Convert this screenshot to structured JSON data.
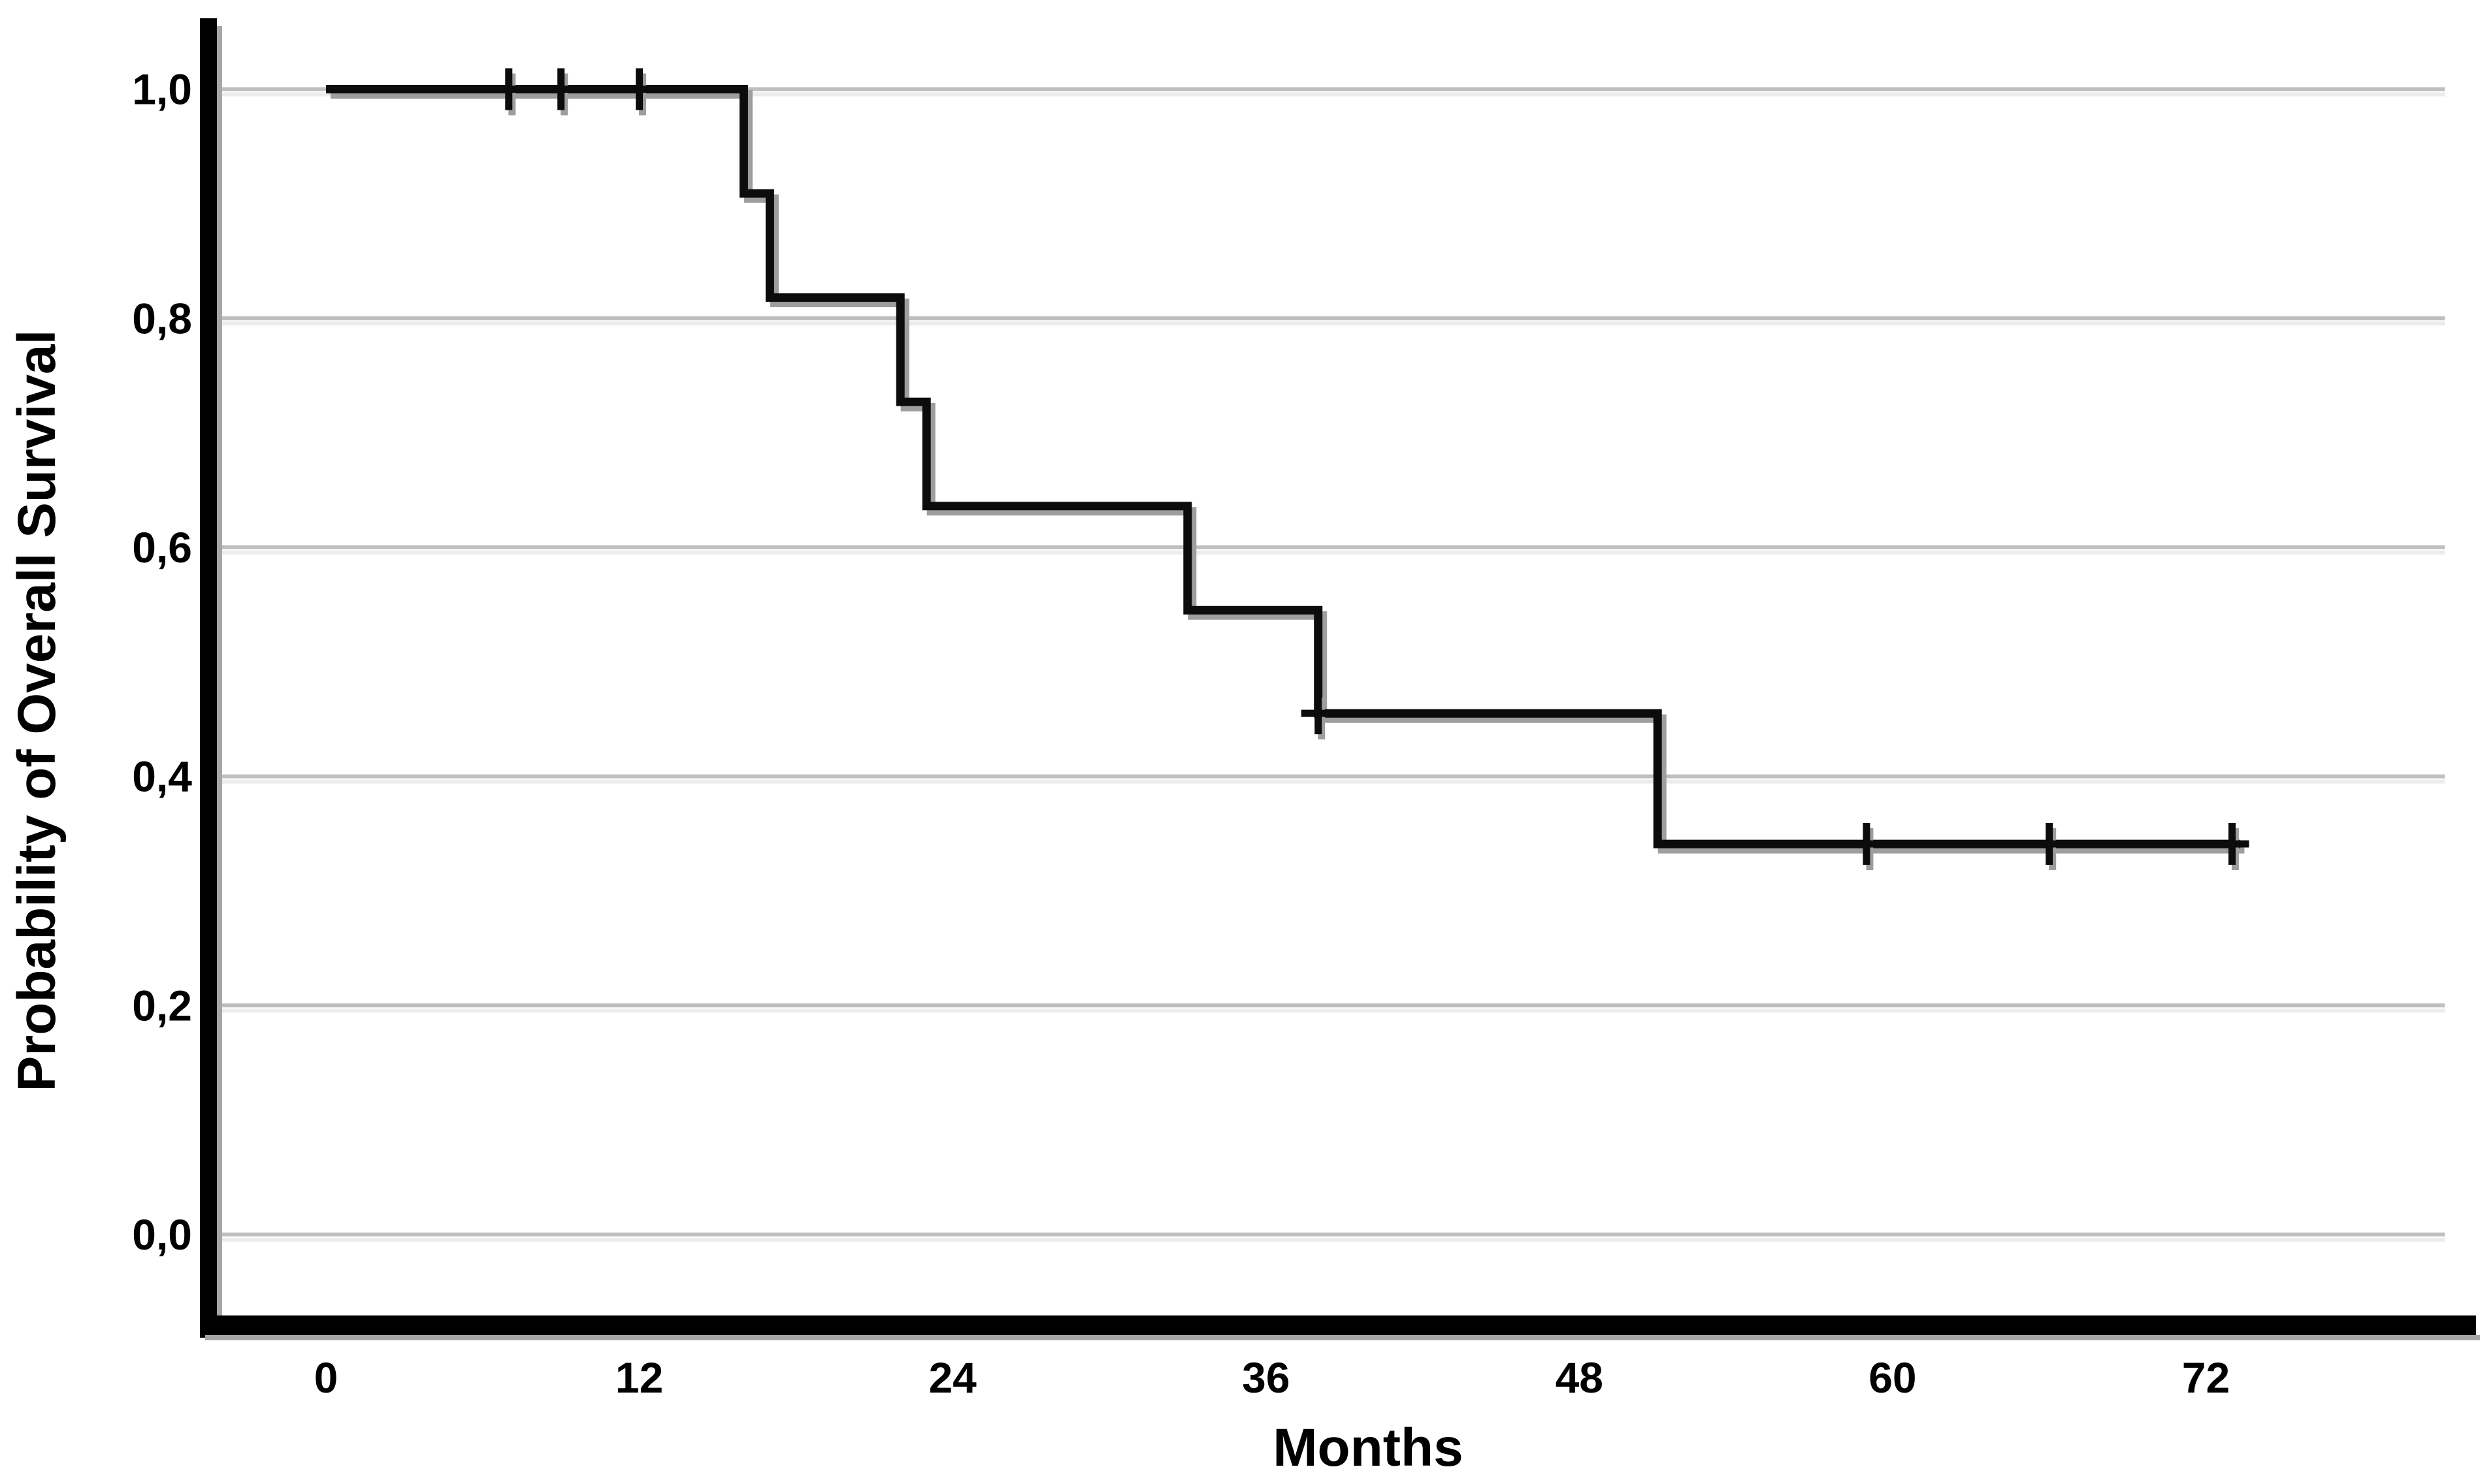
{
  "chart_data": {
    "type": "line",
    "subtype": "kaplan-meier-step",
    "title": "",
    "xlabel": "Months",
    "ylabel": "Probability of Overall Survival",
    "xlim": [
      -4.5,
      81
    ],
    "ylim": [
      -0.07,
      1.06
    ],
    "x_ticks": [
      0,
      12,
      24,
      36,
      48,
      60,
      72
    ],
    "x_tick_labels": [
      "0",
      "12",
      "24",
      "36",
      "48",
      "60",
      "72"
    ],
    "y_ticks": [
      0.0,
      0.2,
      0.4,
      0.6,
      0.8,
      1.0
    ],
    "y_tick_labels": [
      "0,0",
      "0,2",
      "0,4",
      "0,6",
      "0,8",
      "1,0"
    ],
    "grid": true,
    "gridline_color": "#bfbfbf",
    "gridline_highlight_color": "#ececec",
    "axis_color": "#000000",
    "axis_shadow_color": "#a6a6a6",
    "legend": false,
    "series": [
      {
        "name": "Overall Survival",
        "color": "#0c0c0c",
        "shadow_color": "#9e9e9e",
        "step_points": [
          [
            0,
            1.0
          ],
          [
            16,
            1.0
          ],
          [
            16,
            0.909
          ],
          [
            17,
            0.909
          ],
          [
            17,
            0.818
          ],
          [
            22,
            0.818
          ],
          [
            22,
            0.727
          ],
          [
            23,
            0.727
          ],
          [
            23,
            0.636
          ],
          [
            33,
            0.636
          ],
          [
            33,
            0.545
          ],
          [
            38,
            0.545
          ],
          [
            38,
            0.455
          ],
          [
            51,
            0.455
          ],
          [
            51,
            0.341
          ],
          [
            73.3,
            0.341
          ]
        ],
        "censor_marks": [
          [
            7,
            1.0
          ],
          [
            9,
            1.0
          ],
          [
            12,
            1.0
          ],
          [
            38,
            0.455
          ],
          [
            59,
            0.341
          ],
          [
            66,
            0.341
          ],
          [
            73,
            0.341
          ]
        ]
      }
    ]
  }
}
